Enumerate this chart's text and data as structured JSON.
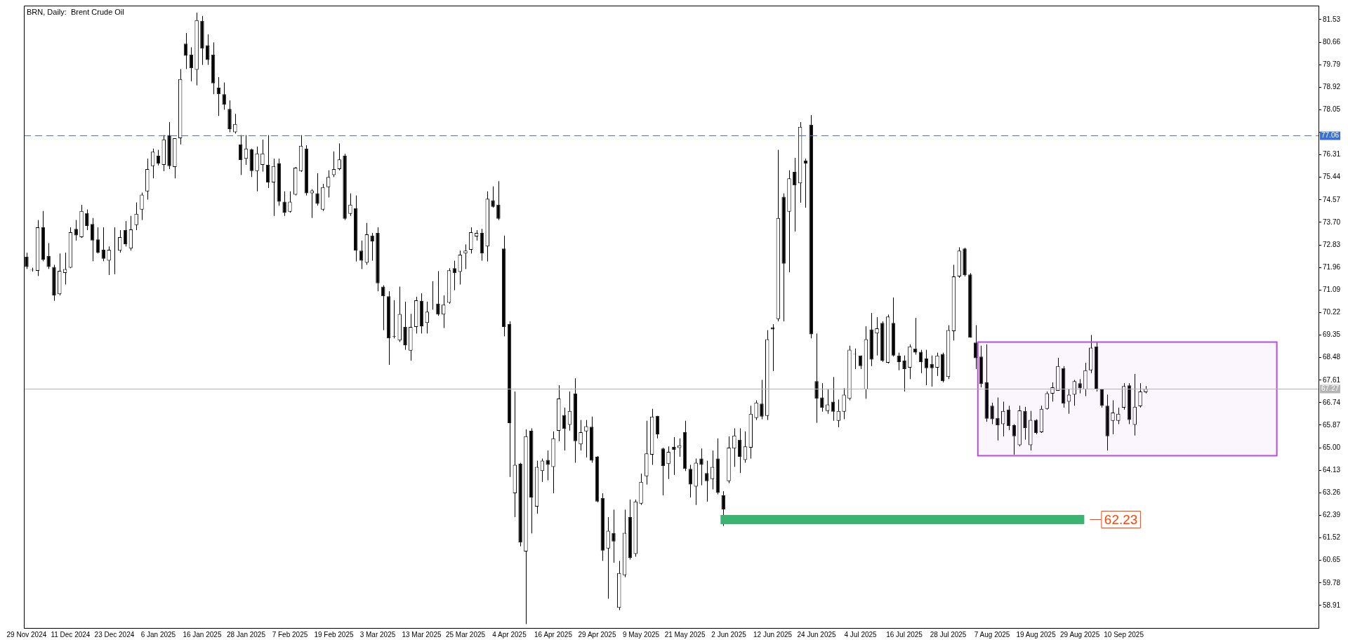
{
  "chart_data": {
    "type": "candlestick",
    "title": "BRN, Daily:  Brent Crude Oil",
    "categories": [
      "29 Nov 2024",
      null,
      null,
      null,
      null,
      null,
      null,
      null,
      "11 Dec 2024",
      null,
      null,
      null,
      null,
      null,
      null,
      null,
      "23 Dec 2024",
      null,
      null,
      null,
      null,
      null,
      null,
      null,
      "6 Jan 2025",
      null,
      null,
      null,
      null,
      null,
      null,
      null,
      "16 Jan 2025",
      null,
      null,
      null,
      null,
      null,
      null,
      null,
      "28 Jan 2025",
      null,
      null,
      null,
      null,
      null,
      null,
      null,
      "7 Feb 2025",
      null,
      null,
      null,
      null,
      null,
      null,
      null,
      "19 Feb 2025",
      null,
      null,
      null,
      null,
      null,
      null,
      null,
      "3 Mar 2025",
      null,
      null,
      null,
      null,
      null,
      null,
      null,
      "13 Mar 2025",
      null,
      null,
      null,
      null,
      null,
      null,
      null,
      "25 Mar 2025",
      null,
      null,
      null,
      null,
      null,
      null,
      null,
      "4 Apr 2025",
      null,
      null,
      null,
      null,
      null,
      null,
      null,
      "16 Apr 2025",
      null,
      null,
      null,
      null,
      null,
      null,
      null,
      "29 Apr 2025",
      null,
      null,
      null,
      null,
      null,
      null,
      null,
      "9 May 2025",
      null,
      null,
      null,
      null,
      null,
      null,
      null,
      "21 May 2025",
      null,
      null,
      null,
      null,
      null,
      null,
      null,
      "2 Jun 2025",
      null,
      null,
      null,
      null,
      null,
      null,
      null,
      "12 Jun 2025",
      null,
      null,
      null,
      null,
      null,
      null,
      null,
      "24 Jun 2025",
      null,
      null,
      null,
      null,
      null,
      null,
      null,
      "4 Jul 2025",
      null,
      null,
      null,
      null,
      null,
      null,
      null,
      "16 Jul 2025",
      null,
      null,
      null,
      null,
      null,
      null,
      null,
      "28 Jul 2025",
      null,
      null,
      null,
      null,
      null,
      null,
      null,
      "7 Aug 2025",
      null,
      null,
      null,
      null,
      null,
      null,
      null,
      "19 Aug 2025",
      null,
      null,
      null,
      null,
      null,
      null,
      null,
      "29 Aug 2025",
      null,
      null,
      null,
      null,
      null,
      null,
      null,
      "10 Sep 2025",
      null,
      null,
      null,
      null,
      null,
      null,
      null,
      null,
      null,
      null,
      null,
      null,
      null,
      null,
      null,
      null,
      null,
      null,
      null,
      null,
      null,
      null,
      null,
      null,
      null,
      null,
      null,
      null,
      null,
      null,
      null,
      null,
      null,
      null,
      null
    ],
    "ohlc": [
      [
        72.37,
        72.53,
        71.9,
        71.98
      ],
      [
        71.87,
        71.95,
        71.8,
        71.85
      ],
      [
        71.83,
        73.79,
        71.63,
        73.51
      ],
      [
        73.51,
        74.14,
        72.2,
        72.26
      ],
      [
        72.4,
        72.9,
        71.9,
        71.98
      ],
      [
        71.98,
        72.06,
        70.67,
        70.88
      ],
      [
        70.93,
        72.5,
        70.88,
        71.83
      ],
      [
        71.75,
        72.53,
        71.3,
        71.9
      ],
      [
        71.95,
        73.51,
        71.93,
        73.32
      ],
      [
        73.45,
        73.79,
        73.0,
        73.2
      ],
      [
        73.13,
        74.38,
        73.1,
        74.14
      ],
      [
        74.06,
        74.2,
        73.4,
        73.56
      ],
      [
        73.64,
        73.87,
        72.2,
        73.0
      ],
      [
        73.04,
        73.51,
        72.5,
        72.53
      ],
      [
        72.64,
        73.51,
        72.2,
        72.3
      ],
      [
        72.22,
        72.77,
        71.67,
        72.64
      ],
      [
        72.75,
        73.51,
        71.7,
        72.76
      ],
      [
        72.61,
        73.4,
        72.53,
        73.13
      ],
      [
        73.4,
        73.75,
        72.77,
        72.86
      ],
      [
        72.69,
        73.95,
        72.61,
        73.43
      ],
      [
        73.6,
        74.47,
        73.4,
        74.03
      ],
      [
        74.19,
        74.85,
        73.79,
        74.77
      ],
      [
        74.9,
        76.16,
        74.58,
        75.76
      ],
      [
        75.87,
        76.55,
        75.4,
        76.43
      ],
      [
        76.27,
        76.5,
        75.9,
        75.97
      ],
      [
        75.92,
        77.07,
        75.68,
        76.9
      ],
      [
        77.07,
        77.57,
        75.76,
        75.87
      ],
      [
        75.84,
        76.95,
        75.4,
        76.95
      ],
      [
        76.95,
        79.62,
        76.71,
        79.23
      ],
      [
        80.6,
        81.01,
        79.62,
        80.13
      ],
      [
        80.18,
        80.46,
        79.15,
        79.65
      ],
      [
        79.59,
        81.8,
        78.99,
        81.51
      ],
      [
        81.48,
        81.67,
        79.78,
        80.41
      ],
      [
        80.54,
        80.96,
        79.78,
        79.97
      ],
      [
        80.18,
        80.65,
        78.65,
        79.07
      ],
      [
        78.91,
        79.31,
        77.81,
        78.65
      ],
      [
        78.65,
        79.1,
        78.05,
        78.24
      ],
      [
        78.08,
        78.41,
        77.18,
        77.3
      ],
      [
        77.18,
        77.89,
        77.13,
        77.5
      ],
      [
        76.71,
        77.07,
        75.53,
        76.11
      ],
      [
        76.16,
        77.07,
        75.92,
        76.55
      ],
      [
        76.52,
        76.55,
        75.45,
        75.68
      ],
      [
        75.68,
        76.63,
        74.9,
        76.36
      ],
      [
        75.92,
        76.9,
        75.66,
        76.36
      ],
      [
        75.92,
        77.07,
        75.03,
        75.24
      ],
      [
        75.24,
        76.16,
        73.95,
        75.87
      ],
      [
        75.99,
        76.16,
        74.35,
        74.5
      ],
      [
        74.5,
        74.9,
        73.95,
        74.08
      ],
      [
        74.11,
        74.9,
        74.08,
        74.5
      ],
      [
        74.77,
        75.84,
        74.74,
        75.81
      ],
      [
        75.68,
        77.07,
        75.65,
        76.66
      ],
      [
        76.55,
        76.68,
        74.74,
        74.82
      ],
      [
        74.82,
        74.98,
        73.87,
        74.93
      ],
      [
        74.82,
        75.6,
        74.35,
        74.42
      ],
      [
        74.19,
        75.19,
        74.14,
        75.06
      ],
      [
        75.06,
        75.71,
        74.66,
        75.45
      ],
      [
        75.53,
        76.44,
        75.45,
        75.76
      ],
      [
        75.76,
        76.75,
        75.71,
        76.13
      ],
      [
        76.27,
        76.35,
        73.79,
        73.84
      ],
      [
        74.03,
        74.82,
        73.95,
        74.38
      ],
      [
        74.24,
        74.74,
        72.19,
        72.61
      ],
      [
        72.61,
        73.0,
        71.9,
        72.22
      ],
      [
        72.14,
        73.68,
        72.06,
        73.24
      ],
      [
        73.19,
        73.29,
        72.22,
        72.97
      ],
      [
        73.29,
        73.51,
        71.04,
        71.35
      ],
      [
        71.22,
        71.27,
        69.54,
        70.85
      ],
      [
        70.85,
        71.04,
        68.2,
        69.22
      ],
      [
        69.3,
        70.7,
        69.22,
        69.28
      ],
      [
        69.14,
        71.22,
        69.08,
        70.16
      ],
      [
        69.66,
        70.64,
        68.78,
        68.96
      ],
      [
        68.75,
        70.17,
        68.36,
        69.66
      ],
      [
        69.66,
        70.83,
        69.41,
        70.69
      ],
      [
        70.67,
        70.96,
        69.41,
        69.69
      ],
      [
        69.82,
        70.64,
        69.41,
        70.25
      ],
      [
        70.67,
        71.43,
        70.33,
        70.68
      ],
      [
        70.56,
        71.82,
        70.09,
        70.14
      ],
      [
        70.14,
        70.88,
        69.62,
        70.52
      ],
      [
        70.6,
        71.93,
        70.56,
        71.85
      ],
      [
        71.93,
        72.22,
        71.08,
        71.74
      ],
      [
        71.79,
        72.61,
        71.3,
        72.45
      ],
      [
        72.5,
        72.85,
        71.9,
        72.61
      ],
      [
        72.64,
        73.51,
        72.5,
        73.32
      ],
      [
        73.16,
        73.4,
        73.0,
        73.29
      ],
      [
        73.29,
        73.45,
        72.22,
        72.5
      ],
      [
        72.77,
        74.9,
        72.19,
        74.61
      ],
      [
        74.55,
        75.09,
        74.27,
        74.3
      ],
      [
        74.38,
        75.29,
        73.79,
        73.84
      ],
      [
        72.69,
        73.19,
        69.3,
        69.66
      ],
      [
        69.77,
        69.88,
        63.87,
        65.95
      ],
      [
        63.24,
        67.17,
        62.32,
        64.34
      ],
      [
        64.38,
        64.42,
        61.19,
        61.34
      ],
      [
        60.99,
        65.71,
        58.19,
        65.44
      ],
      [
        65.65,
        65.75,
        61.69,
        63.08
      ],
      [
        62.73,
        64.5,
        62.45,
        64.26
      ],
      [
        64.1,
        64.58,
        63.68,
        64.5
      ],
      [
        64.53,
        64.89,
        63.74,
        64.34
      ],
      [
        64.26,
        65.63,
        63.24,
        65.36
      ],
      [
        65.65,
        67.41,
        65.25,
        66.9
      ],
      [
        66.26,
        66.55,
        64.89,
        65.73
      ],
      [
        65.88,
        67.17,
        65.66,
        66.42
      ],
      [
        67.09,
        67.68,
        64.42,
        65.25
      ],
      [
        65.13,
        66.07,
        64.89,
        65.6
      ],
      [
        65.63,
        66.07,
        64.62,
        65.83
      ],
      [
        65.81,
        66.2,
        64.42,
        64.5
      ],
      [
        64.65,
        64.68,
        62.89,
        62.92
      ],
      [
        63.05,
        63.24,
        60.63,
        61.03
      ],
      [
        61.11,
        62.32,
        59.17,
        61.79
      ],
      [
        61.7,
        62.61,
        60.56,
        61.38
      ],
      [
        58.82,
        60.63,
        58.73,
        60.16
      ],
      [
        60.08,
        62.61,
        60.0,
        61.71
      ],
      [
        62.32,
        63.0,
        60.68,
        60.75
      ],
      [
        60.9,
        63.0,
        60.79,
        62.92
      ],
      [
        62.84,
        64.0,
        62.79,
        63.68
      ],
      [
        63.9,
        66.04,
        63.58,
        64.78
      ],
      [
        64.73,
        66.5,
        64.34,
        66.2
      ],
      [
        66.23,
        66.23,
        65.36,
        65.52
      ],
      [
        64.97,
        65.0,
        63.16,
        64.3
      ],
      [
        64.37,
        65.05,
        63.79,
        64.84
      ],
      [
        65.03,
        65.41,
        63.95,
        64.92
      ],
      [
        64.99,
        65.36,
        64.65,
        65.09
      ],
      [
        65.6,
        66.04,
        64.1,
        64.18
      ],
      [
        64.18,
        64.34,
        63.08,
        63.58
      ],
      [
        63.5,
        64.58,
        62.79,
        64.42
      ],
      [
        64.58,
        64.97,
        63.55,
        64.34
      ],
      [
        64.02,
        64.5,
        62.92,
        63.71
      ],
      [
        63.79,
        64.89,
        63.39,
        64.26
      ],
      [
        64.58,
        65.36,
        63.2,
        63.27
      ],
      [
        63.16,
        63.32,
        61.98,
        62.61
      ],
      [
        63.71,
        65.44,
        63.63,
        65.0
      ],
      [
        64.97,
        65.75,
        64.26,
        65.47
      ],
      [
        65.31,
        65.75,
        64.02,
        64.65
      ],
      [
        64.53,
        65.63,
        64.42,
        65.05
      ],
      [
        65.0,
        66.62,
        64.58,
        66.31
      ],
      [
        66.15,
        66.83,
        66.07,
        66.74
      ],
      [
        66.7,
        67.62,
        66.1,
        66.2
      ],
      [
        66.23,
        69.54,
        66.07,
        69.19
      ],
      [
        69.65,
        69.77,
        67.96,
        69.57
      ],
      [
        69.97,
        76.5,
        69.88,
        73.87
      ],
      [
        74.69,
        74.82,
        69.88,
        72.11
      ],
      [
        74.11,
        75.71,
        71.77,
        75.4
      ],
      [
        75.65,
        76.19,
        73.35,
        75.13
      ],
      [
        75.21,
        77.57,
        74.46,
        77.39
      ],
      [
        76.08,
        76.16,
        74.27,
        75.97
      ],
      [
        77.47,
        77.84,
        69.22,
        69.38
      ],
      [
        67.57,
        69.41,
        65.96,
        66.89
      ],
      [
        66.94,
        67.49,
        66.39,
        66.55
      ],
      [
        66.42,
        67.25,
        66.31,
        66.67
      ],
      [
        66.78,
        67.73,
        66.04,
        66.39
      ],
      [
        66.04,
        66.86,
        65.79,
        66.42
      ],
      [
        66.39,
        67.3,
        66.1,
        67.05
      ],
      [
        66.89,
        68.94,
        66.83,
        68.78
      ],
      [
        68.63,
        68.83,
        68.04,
        68.62
      ],
      [
        68.56,
        68.56,
        68.04,
        68.15
      ],
      [
        67.25,
        69.69,
        66.89,
        69.19
      ],
      [
        69.57,
        70.2,
        68.15,
        68.4
      ],
      [
        69.41,
        70.04,
        68.56,
        69.61
      ],
      [
        69.82,
        69.88,
        68.31,
        68.36
      ],
      [
        68.28,
        70.14,
        68.25,
        70.06
      ],
      [
        69.82,
        70.8,
        68.52,
        68.56
      ],
      [
        68.56,
        68.67,
        67.99,
        68.31
      ],
      [
        68.36,
        68.56,
        67.17,
        68.04
      ],
      [
        68.09,
        68.99,
        67.65,
        68.91
      ],
      [
        68.83,
        70.01,
        68.59,
        68.67
      ],
      [
        68.7,
        68.78,
        67.88,
        68.31
      ],
      [
        68.44,
        68.78,
        67.41,
        68.07
      ],
      [
        68.23,
        68.56,
        67.36,
        68.07
      ],
      [
        68.09,
        68.67,
        67.77,
        68.56
      ],
      [
        68.62,
        68.67,
        67.52,
        67.57
      ],
      [
        67.73,
        69.73,
        67.65,
        69.54
      ],
      [
        69.5,
        72.06,
        69.14,
        71.61
      ],
      [
        71.61,
        72.74,
        71.56,
        72.61
      ],
      [
        72.69,
        72.72,
        71.61,
        71.66
      ],
      [
        71.69,
        71.74,
        69.25,
        69.25
      ],
      [
        69.06,
        69.73,
        68.04,
        68.46
      ],
      [
        68.52,
        68.94,
        67.33,
        67.46
      ],
      [
        67.52,
        68.99,
        66.0,
        66.12
      ],
      [
        66.62,
        66.74,
        65.91,
        66.1
      ],
      [
        66.15,
        66.94,
        65.28,
        65.87
      ],
      [
        65.91,
        66.78,
        65.44,
        66.42
      ],
      [
        66.47,
        66.62,
        65.68,
        65.84
      ],
      [
        65.87,
        65.91,
        64.73,
        65.44
      ],
      [
        65.1,
        66.62,
        65.05,
        66.44
      ],
      [
        66.42,
        66.58,
        65.31,
        65.76
      ],
      [
        65.1,
        66.42,
        64.89,
        66.07
      ],
      [
        66.07,
        66.1,
        65.52,
        65.57
      ],
      [
        65.6,
        66.62,
        65.57,
        66.5
      ],
      [
        66.5,
        67.17,
        66.47,
        67.1
      ],
      [
        67.09,
        67.52,
        66.78,
        67.33
      ],
      [
        67.2,
        68.47,
        67.2,
        68.15
      ],
      [
        68.07,
        68.15,
        66.55,
        66.7
      ],
      [
        66.78,
        67.25,
        66.31,
        67.05
      ],
      [
        67.05,
        67.62,
        66.62,
        67.57
      ],
      [
        67.49,
        67.65,
        67.1,
        67.3
      ],
      [
        67.25,
        68.28,
        66.99,
        67.99
      ],
      [
        67.99,
        69.35,
        67.88,
        68.86
      ],
      [
        68.91,
        69.07,
        67.17,
        67.25
      ],
      [
        67.25,
        67.28,
        66.55,
        66.62
      ],
      [
        66.62,
        67.05,
        64.89,
        65.44
      ],
      [
        66.04,
        66.83,
        65.52,
        66.36
      ],
      [
        66.04,
        66.55,
        65.91,
        66.31
      ],
      [
        66.55,
        67.49,
        66.47,
        67.38
      ],
      [
        67.41,
        67.49,
        65.91,
        66.07
      ],
      [
        65.88,
        67.85,
        65.47,
        66.58
      ],
      [
        66.6,
        67.49,
        66.55,
        67.17
      ],
      [
        67.14,
        67.38,
        67.1,
        67.27
      ],
      null,
      null,
      null,
      null,
      null,
      null,
      null,
      null,
      null,
      null,
      null,
      null,
      null,
      null,
      null,
      null,
      null,
      null,
      null,
      null,
      null,
      null,
      null,
      null,
      null,
      null,
      null,
      null,
      null,
      null,
      null
    ],
    "ylim": [
      58.04,
      82.07
    ],
    "yticks": [
      58.91,
      59.78,
      60.65,
      61.52,
      62.39,
      63.26,
      64.13,
      {
        "value": 65,
        "label": "65.00"
      },
      65.87,
      66.74,
      67.61,
      68.48,
      69.35,
      70.22,
      71.09,
      71.96,
      72.83,
      {
        "value": 73.7,
        "label": "73.70"
      },
      74.57,
      75.44,
      76.31,
      {
        "value": 77.18,
        "label": null
      },
      78.05,
      78.92,
      79.79,
      80.66,
      81.53
    ],
    "ref_lines": [
      {
        "axis": "y",
        "value": 77.06,
        "label": "77.06",
        "color": "#4a72e0",
        "line_style": "dashed"
      },
      {
        "axis": "y",
        "value": 67.27,
        "label": "67.27",
        "color": "#b4b4b4",
        "line_style": "solid"
      },
      {
        "axis": "y",
        "value": 62.23,
        "label": "62.23",
        "color": "#3cb371",
        "line_style": "solid"
      }
    ],
    "bands": [
      {
        "axis": "y",
        "from": 64.69,
        "to": 69.08,
        "color": "#b44fd6"
      }
    ]
  }
}
